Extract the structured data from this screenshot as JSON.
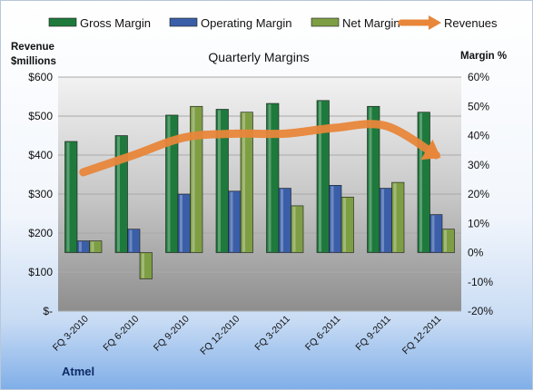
{
  "chart_data": {
    "type": "bar",
    "title": "Quarterly Margins",
    "company": "Atmel",
    "y_left_label_line1": "Revenue",
    "y_left_label_line2": "$millions",
    "y_right_label": "Margin %",
    "categories": [
      "FQ 3-2010",
      "FQ 6-2010",
      "FQ 9-2010",
      "FQ 12-2010",
      "FQ 3-2011",
      "FQ 6-2011",
      "FQ 9-2011",
      "FQ 12-2011"
    ],
    "left_axis": {
      "min": 0,
      "max": 600,
      "step": 100,
      "tick_labels": [
        "$-",
        "$100",
        "$200",
        "$300",
        "$400",
        "$500",
        "$600"
      ]
    },
    "right_axis": {
      "min": -20,
      "max": 60,
      "step": 10,
      "tick_labels": [
        "-20%",
        "-10%",
        "0%",
        "10%",
        "20%",
        "30%",
        "40%",
        "50%",
        "60%"
      ]
    },
    "series": [
      {
        "name": "Gross Margin",
        "kind": "bar",
        "axis": "right",
        "color": "#1e7a3c",
        "values": [
          38,
          40,
          47,
          49,
          51,
          52,
          50,
          48
        ]
      },
      {
        "name": "Operating Margin",
        "kind": "bar",
        "axis": "right",
        "color": "#3a5ea8",
        "values": [
          4,
          8,
          20,
          21,
          22,
          23,
          22,
          13
        ]
      },
      {
        "name": "Net Margin",
        "kind": "bar",
        "axis": "right",
        "color": "#7e9e44",
        "values": [
          4,
          -9,
          50,
          48,
          16,
          19,
          24,
          8
        ]
      },
      {
        "name": "Revenues",
        "kind": "line",
        "axis": "left",
        "color": "#e8863a",
        "values": [
          356,
          400,
          445,
          455,
          455,
          470,
          475,
          400
        ]
      }
    ],
    "legend_position": "top",
    "grid": true
  }
}
